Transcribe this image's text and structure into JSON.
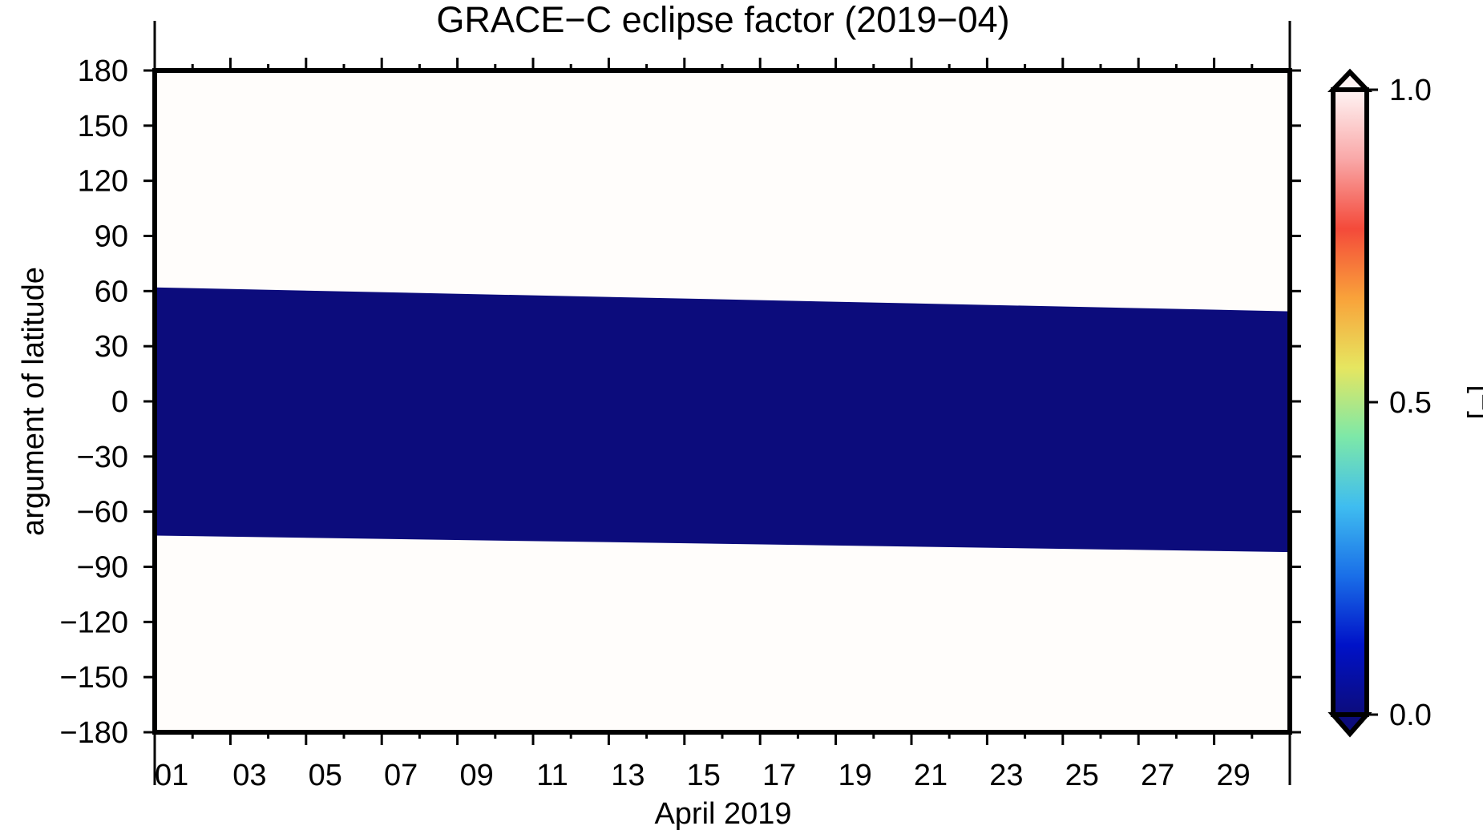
{
  "chart_data": {
    "type": "heatmap",
    "title": "GRACE−C eclipse factor (2019−04)",
    "xlabel": "April 2019",
    "ylabel": "argument of latitude",
    "xlim": [
      1,
      31
    ],
    "ylim": [
      -180,
      180
    ],
    "x_ticks": [
      "01",
      "03",
      "05",
      "07",
      "09",
      "11",
      "13",
      "15",
      "17",
      "19",
      "21",
      "23",
      "25",
      "27",
      "29"
    ],
    "x_tick_values": [
      1,
      3,
      5,
      7,
      9,
      11,
      13,
      15,
      17,
      19,
      21,
      23,
      25,
      27,
      29
    ],
    "y_ticks": [
      "180",
      "150",
      "120",
      "90",
      "60",
      "30",
      "0",
      "−30",
      "−60",
      "−90",
      "−120",
      "−150",
      "−180"
    ],
    "y_tick_values": [
      180,
      150,
      120,
      90,
      60,
      30,
      0,
      -30,
      -60,
      -90,
      -120,
      -150,
      -180
    ],
    "eclipse_band": {
      "value": 0.0,
      "x": [
        1,
        31
      ],
      "upper": [
        62,
        49
      ],
      "lower": [
        -73,
        -82
      ]
    },
    "background_value": 1.0,
    "colorbar": {
      "label": "[−]",
      "ticks": [
        "0.0",
        "0.5",
        "1.0"
      ],
      "tick_values": [
        0.0,
        0.5,
        1.0
      ],
      "range": [
        0.0,
        1.0
      ],
      "colors": [
        "#0c0c7c",
        "#0012c8",
        "#1a6fe8",
        "#3fbdf0",
        "#7de8a8",
        "#e6e660",
        "#f9a23a",
        "#f44a3a",
        "#f9a8a8",
        "#fff4f4"
      ]
    }
  }
}
